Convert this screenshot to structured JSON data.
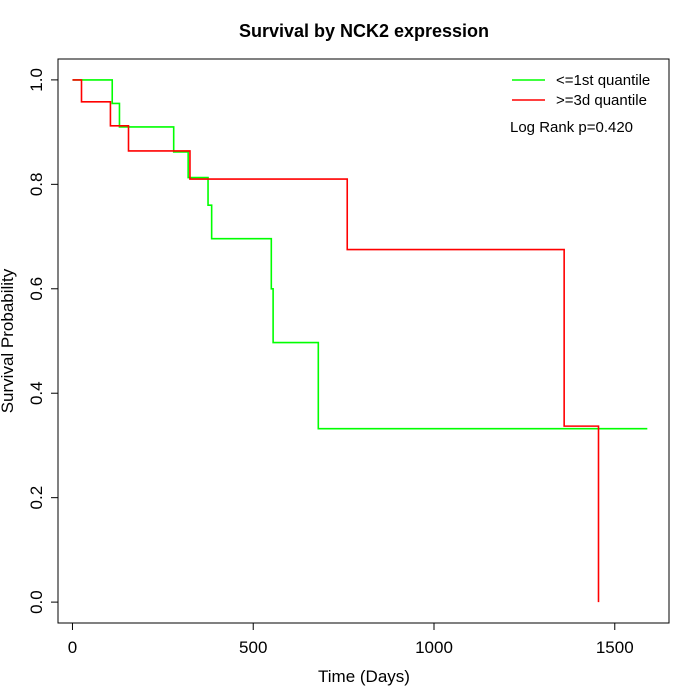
{
  "chart_data": {
    "type": "line",
    "title": "Survival by NCK2 expression",
    "xlabel": "Time (Days)",
    "ylabel": "Survival Probability",
    "xlim": [
      -40,
      1650
    ],
    "ylim": [
      -0.04,
      1.04
    ],
    "x_ticks": [
      0,
      500,
      1000,
      1500
    ],
    "y_ticks": [
      0.0,
      0.2,
      0.4,
      0.6,
      0.8,
      1.0
    ],
    "y_tick_labels": [
      "0.0",
      "0.2",
      "0.4",
      "0.6",
      "0.8",
      "1.0"
    ],
    "grid": false,
    "legend_position": "top-right",
    "annotation": "Log Rank p=0.420",
    "series": [
      {
        "name": "<=1st quantile",
        "color": "#00ff00",
        "step": true,
        "x": [
          0,
          110,
          130,
          140,
          280,
          320,
          375,
          385,
          550,
          555,
          680,
          1590
        ],
        "y": [
          1.0,
          0.955,
          0.91,
          0.91,
          0.862,
          0.813,
          0.76,
          0.696,
          0.6,
          0.497,
          0.332,
          0.332
        ]
      },
      {
        "name": ">=3d quantile",
        "color": "#ff0000",
        "step": true,
        "x": [
          0,
          25,
          105,
          155,
          325,
          760,
          1360,
          1455,
          1455
        ],
        "y": [
          1.0,
          0.958,
          0.912,
          0.864,
          0.81,
          0.675,
          0.337,
          0.337,
          0.0
        ]
      }
    ]
  }
}
